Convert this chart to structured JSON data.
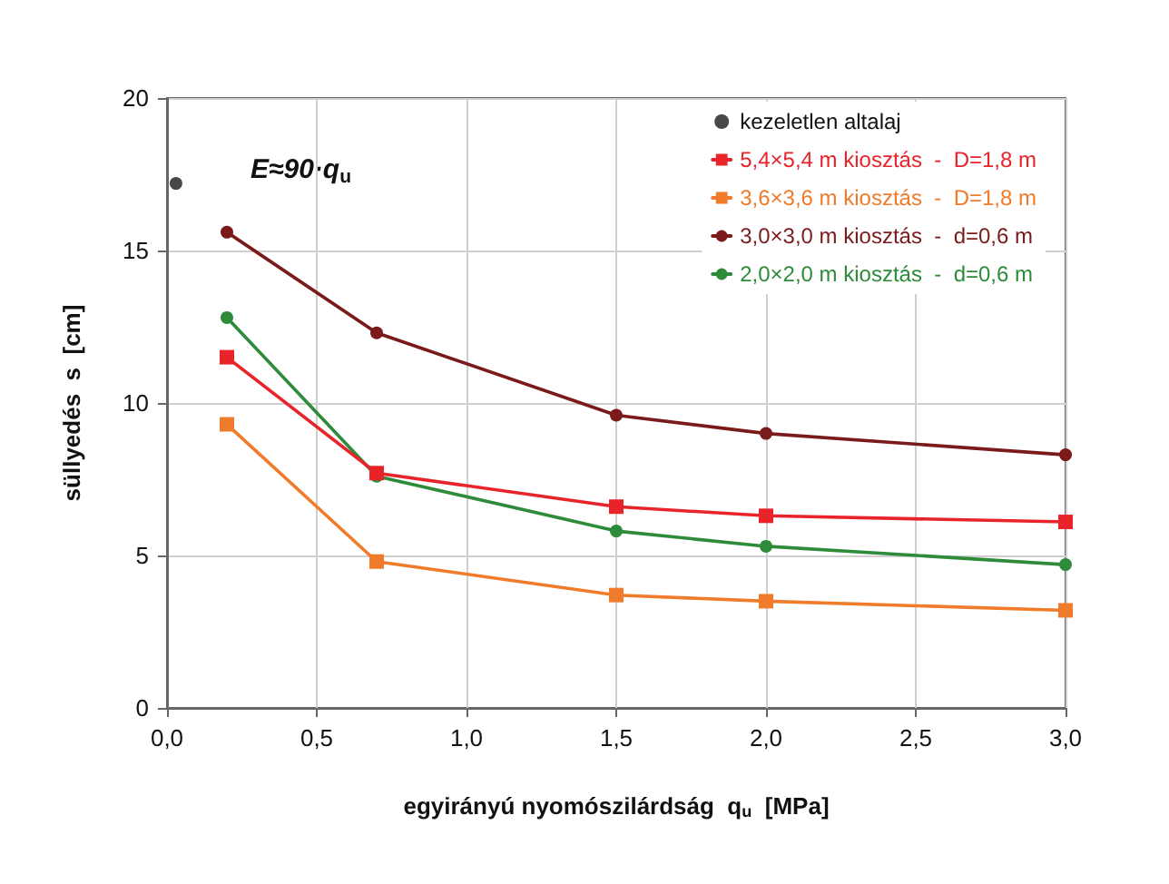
{
  "chart_data": {
    "type": "line",
    "xlabel": "egyirányú nyomószilárdság  q$_{u}$  [MPa]",
    "ylabel": "süllyedés  s  [cm]",
    "annotations": [
      "E≈90·q$_{u}$"
    ],
    "xlim": [
      0,
      3
    ],
    "xticks": [
      {
        "value": 0,
        "label": "0,0"
      },
      {
        "value": 0.5,
        "label": "0,5"
      },
      {
        "value": 1,
        "label": "1,0"
      },
      {
        "value": 1.5,
        "label": "1,5"
      },
      {
        "value": 2,
        "label": "2,0"
      },
      {
        "value": 2.5,
        "label": "2,5"
      },
      {
        "value": 3,
        "label": "3,0"
      }
    ],
    "ylim": [
      0,
      20
    ],
    "yticks": [
      0,
      5,
      10,
      15,
      20
    ],
    "grid": true,
    "legend": "top right",
    "series": [
      {
        "name": "kezeletlen altalaj",
        "type": "scatter",
        "marker": "circle",
        "color": "#1a1a1a",
        "x": [
          0.03
        ],
        "values": [
          17.2
        ]
      },
      {
        "name": "5,4×5,4 m kiosztás  -  D=1,8 m",
        "marker": "square",
        "color": "#e8242a",
        "x": [
          0.2,
          0.7,
          1.5,
          2.0,
          3.0
        ],
        "values": [
          11.5,
          7.7,
          6.6,
          6.3,
          6.1
        ]
      },
      {
        "name": "3,6×3,6 m kiosztás  -  D=1,8 m",
        "marker": "square",
        "color": "#f07b2a",
        "x": [
          0.2,
          0.7,
          1.5,
          2.0,
          3.0
        ],
        "values": [
          9.3,
          4.8,
          3.7,
          3.5,
          3.2
        ]
      },
      {
        "name": "3,0×3,0 m kiosztás  -  d=0,6 m",
        "marker": "circle",
        "color": "#7a1a1a",
        "x": [
          0.2,
          0.7,
          1.5,
          2.0,
          3.0
        ],
        "values": [
          15.6,
          12.3,
          9.6,
          9.0,
          8.3
        ]
      },
      {
        "name": "2,0×2,0 m kiosztás  -  d=0,6 m",
        "marker": "circle",
        "color": "#2e8b3a",
        "x": [
          0.2,
          0.7,
          1.5,
          2.0,
          3.0
        ],
        "values": [
          12.8,
          7.6,
          5.8,
          5.3,
          4.7
        ]
      }
    ]
  }
}
